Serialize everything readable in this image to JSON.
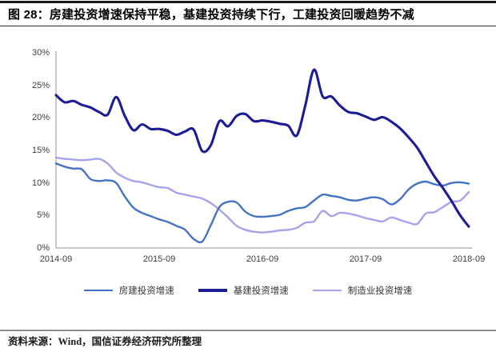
{
  "header": {
    "title": "图 28：房建投资增速保持平稳，基建投资持续下行，工建投资回暖趋势不减"
  },
  "footer": {
    "source": "资料来源：Wind，国信证券经济研究所整理"
  },
  "colors": {
    "housing_line": "#4472c4",
    "infrastructure_line": "#1c1c96",
    "manufacturing_line": "#a5a3ec",
    "axis": "#a8a8a8",
    "tick_text": "#3d3d3d",
    "title_text": "#000000",
    "top_rule": "#1a1a1a",
    "footer_rule": "#8f8f8f"
  },
  "legend": {
    "items": [
      {
        "label": "房建投资增速",
        "series": 0
      },
      {
        "label": "基建投资增速",
        "series": 1
      },
      {
        "label": "制造业投资增速",
        "series": 2
      }
    ]
  },
  "chart_data": {
    "type": "line",
    "title": "",
    "xlabel": "",
    "ylabel": "",
    "ylim": [
      0,
      30
    ],
    "grid": false,
    "legend_position": "bottom",
    "y_tick_labels": [
      "0%",
      "5%",
      "10%",
      "15%",
      "20%",
      "25%",
      "30%"
    ],
    "y_tick_values": [
      0,
      5,
      10,
      15,
      20,
      25,
      30
    ],
    "x_tick_labels": [
      "2014-09",
      "2015-09",
      "2016-09",
      "2017-09",
      "2018-09"
    ],
    "x_tick_indices": [
      0,
      12,
      24,
      36,
      48
    ],
    "x": [
      "2014-09",
      "2014-10",
      "2014-11",
      "2014-12",
      "2015-01",
      "2015-02",
      "2015-03",
      "2015-04",
      "2015-05",
      "2015-06",
      "2015-07",
      "2015-08",
      "2015-09",
      "2015-10",
      "2015-11",
      "2015-12",
      "2016-01",
      "2016-02",
      "2016-03",
      "2016-04",
      "2016-05",
      "2016-06",
      "2016-07",
      "2016-08",
      "2016-09",
      "2016-10",
      "2016-11",
      "2016-12",
      "2017-01",
      "2017-02",
      "2017-03",
      "2017-04",
      "2017-05",
      "2017-06",
      "2017-07",
      "2017-08",
      "2017-09",
      "2017-10",
      "2017-11",
      "2017-12",
      "2018-01",
      "2018-02",
      "2018-03",
      "2018-04",
      "2018-05",
      "2018-06",
      "2018-07",
      "2018-08",
      "2018-09"
    ],
    "series": [
      {
        "name": "房建投资增速",
        "color": "#4472c4",
        "line_width": 2.4,
        "values": [
          13.0,
          12.5,
          12.2,
          12.1,
          10.6,
          10.3,
          10.4,
          10.0,
          7.9,
          6.2,
          5.4,
          4.9,
          4.4,
          4.0,
          3.4,
          2.8,
          1.4,
          1.0,
          3.5,
          6.3,
          7.1,
          7.0,
          5.6,
          4.9,
          4.8,
          4.9,
          5.1,
          5.7,
          6.1,
          6.3,
          7.3,
          8.2,
          8.0,
          7.8,
          7.4,
          7.3,
          7.6,
          7.8,
          7.5,
          6.7,
          7.5,
          9.0,
          9.9,
          10.2,
          9.8,
          9.6,
          10.0,
          10.1,
          9.9
        ]
      },
      {
        "name": "基建投资增速",
        "color": "#1c1c96",
        "line_width": 3.1,
        "values": [
          23.5,
          22.4,
          22.6,
          22.0,
          21.6,
          20.9,
          20.5,
          23.2,
          20.3,
          18.1,
          19.0,
          18.3,
          18.3,
          18.0,
          17.4,
          17.9,
          18.2,
          14.9,
          15.8,
          19.5,
          18.7,
          20.3,
          20.6,
          19.5,
          19.6,
          19.4,
          19.1,
          18.8,
          17.3,
          22.0,
          27.4,
          23.3,
          23.3,
          21.9,
          20.9,
          20.7,
          20.2,
          19.7,
          20.1,
          19.4,
          18.4,
          17.0,
          15.4,
          13.2,
          11.0,
          9.2,
          7.2,
          5.0,
          3.3
        ]
      },
      {
        "name": "制造业投资增速",
        "color": "#a5a3ec",
        "line_width": 2.4,
        "values": [
          13.9,
          13.7,
          13.6,
          13.5,
          13.6,
          13.7,
          13.0,
          11.6,
          10.8,
          10.3,
          10.1,
          9.7,
          9.35,
          9.2,
          8.5,
          8.2,
          7.9,
          7.6,
          6.9,
          5.9,
          4.7,
          3.4,
          2.8,
          2.5,
          2.4,
          2.5,
          2.7,
          2.8,
          3.1,
          3.9,
          4.1,
          5.7,
          4.9,
          5.4,
          5.3,
          5.0,
          4.6,
          4.3,
          4.1,
          4.7,
          4.3,
          3.9,
          3.7,
          5.3,
          5.5,
          6.3,
          7.1,
          7.3,
          8.6
        ]
      }
    ]
  }
}
